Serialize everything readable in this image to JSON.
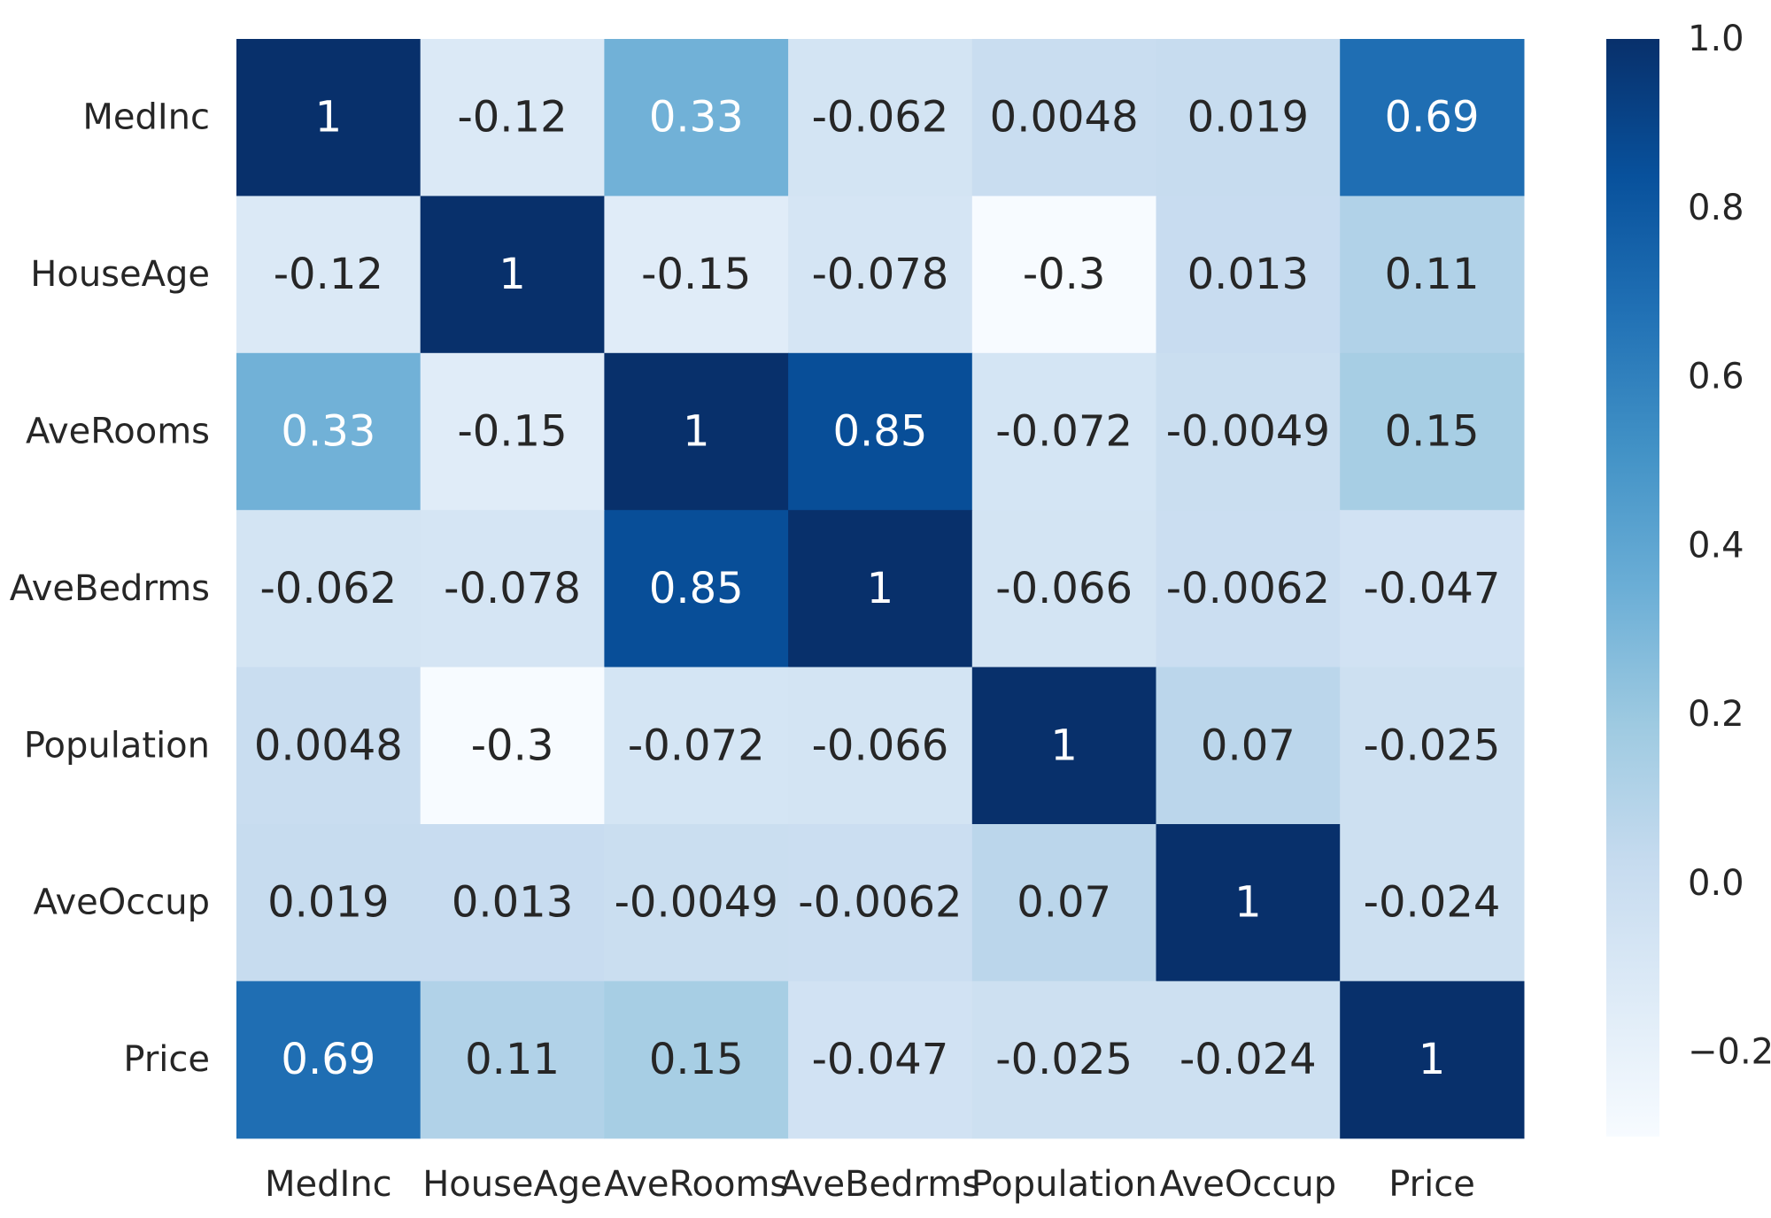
{
  "chart_data": {
    "type": "heatmap",
    "x_labels": [
      "MedInc",
      "HouseAge",
      "AveRooms",
      "AveBedrms",
      "Population",
      "AveOccup",
      "Price"
    ],
    "y_labels": [
      "MedInc",
      "HouseAge",
      "AveRooms",
      "AveBedrms",
      "Population",
      "AveOccup",
      "Price"
    ],
    "values": [
      [
        1,
        -0.12,
        0.33,
        -0.062,
        0.0048,
        0.019,
        0.69
      ],
      [
        -0.12,
        1,
        -0.15,
        -0.078,
        -0.3,
        0.013,
        0.11
      ],
      [
        0.33,
        -0.15,
        1,
        0.85,
        -0.072,
        -0.0049,
        0.15
      ],
      [
        -0.062,
        -0.078,
        0.85,
        1,
        -0.066,
        -0.0062,
        -0.047
      ],
      [
        0.0048,
        -0.3,
        -0.072,
        -0.066,
        1,
        0.07,
        -0.025
      ],
      [
        0.019,
        0.013,
        -0.0049,
        -0.0062,
        0.07,
        1,
        -0.024
      ],
      [
        0.69,
        0.11,
        0.15,
        -0.047,
        -0.025,
        -0.024,
        1
      ]
    ],
    "annotations": [
      [
        "1",
        "-0.12",
        "0.33",
        "-0.062",
        "0.0048",
        "0.019",
        "0.69"
      ],
      [
        "-0.12",
        "1",
        "-0.15",
        "-0.078",
        "-0.3",
        "0.013",
        "0.11"
      ],
      [
        "0.33",
        "-0.15",
        "1",
        "0.85",
        "-0.072",
        "-0.0049",
        "0.15"
      ],
      [
        "-0.062",
        "-0.078",
        "0.85",
        "1",
        "-0.066",
        "-0.0062",
        "-0.047"
      ],
      [
        "0.0048",
        "-0.3",
        "-0.072",
        "-0.066",
        "1",
        "0.07",
        "-0.025"
      ],
      [
        "0.019",
        "0.013",
        "-0.0049",
        "-0.0062",
        "0.07",
        "1",
        "-0.024"
      ],
      [
        "0.69",
        "0.11",
        "0.15",
        "-0.047",
        "-0.025",
        "-0.024",
        "1"
      ]
    ],
    "colormap": "Blues",
    "colorbar": {
      "range": [
        -0.3,
        1.0
      ],
      "ticks": [
        1.0,
        0.8,
        0.6,
        0.4,
        0.2,
        0.0,
        -0.2
      ],
      "tick_labels": [
        "1.0",
        "0.8",
        "0.6",
        "0.4",
        "0.2",
        "0.0",
        "−0.2"
      ]
    },
    "colors": {
      "dark_text": "#262626",
      "light_text": "#ffffff",
      "blues_stops": [
        "#f7fbff",
        "#deebf7",
        "#c6dbef",
        "#9ecae1",
        "#6baed6",
        "#4292c6",
        "#2171b5",
        "#08519c",
        "#08306b"
      ]
    },
    "title": "",
    "xlabel": "",
    "ylabel": ""
  }
}
